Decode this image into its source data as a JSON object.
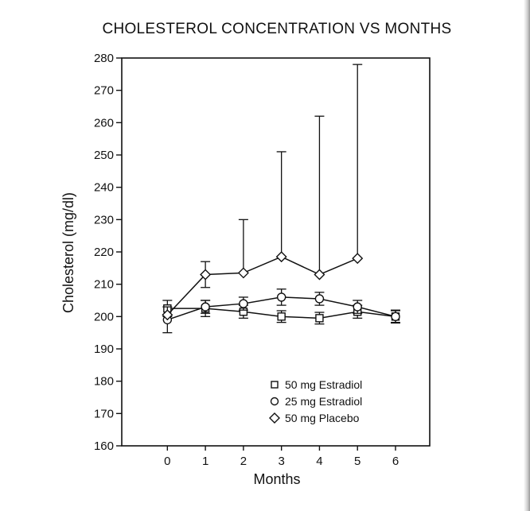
{
  "chart_data": {
    "type": "line",
    "title": "CHOLESTEROL CONCENTRATION VS MONTHS",
    "xlabel": "Months",
    "ylabel": "Cholesterol (mg/dl)",
    "x": [
      0,
      1,
      2,
      3,
      4,
      5,
      6
    ],
    "xticks": [
      "0",
      "1",
      "2",
      "3",
      "4",
      "5",
      "6"
    ],
    "xlim": [
      -1.2,
      6.9
    ],
    "ylim": [
      160,
      280
    ],
    "yticks": [
      "160",
      "170",
      "180",
      "190",
      "200",
      "210",
      "220",
      "230",
      "240",
      "250",
      "260",
      "270",
      "280"
    ],
    "grid": false,
    "legend_position": "bottom-right",
    "series": [
      {
        "name": "50 mg Estradiol",
        "marker": "square",
        "x": [
          0,
          1,
          2,
          3,
          4,
          5,
          6
        ],
        "values": [
          202.5,
          202.5,
          201.5,
          200,
          199.5,
          201.5,
          200
        ],
        "err_low": [
          2.5,
          2.5,
          2,
          1.8,
          1.8,
          2,
          1.8
        ],
        "err_high": [
          2.5,
          2.5,
          2,
          1.8,
          1.8,
          2,
          1.8
        ]
      },
      {
        "name": "25 mg Estradiol",
        "marker": "circle",
        "x": [
          0,
          1,
          2,
          3,
          4,
          5,
          6
        ],
        "values": [
          199,
          203,
          204,
          206,
          205.5,
          203,
          200
        ],
        "err_low": [
          4,
          2,
          2,
          2.5,
          2,
          2,
          2
        ],
        "err_high": [
          4,
          2,
          2,
          2.5,
          2,
          2,
          2
        ]
      },
      {
        "name": "50 mg Placebo",
        "marker": "diamond",
        "x": [
          0,
          1,
          2,
          3,
          4,
          5
        ],
        "values": [
          200.5,
          213,
          213.5,
          218.5,
          213,
          218
        ],
        "err_low": [
          0,
          4,
          0,
          0,
          0,
          0
        ],
        "err_high": [
          0,
          4,
          16.5,
          32.5,
          49,
          60
        ]
      }
    ]
  }
}
